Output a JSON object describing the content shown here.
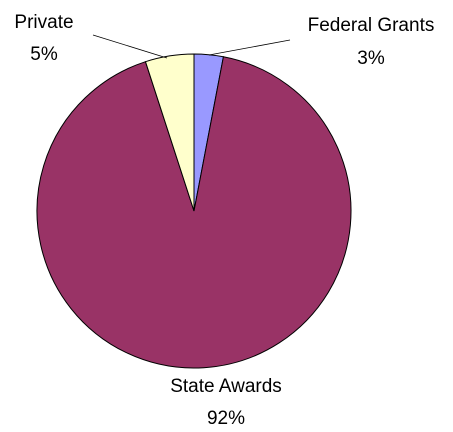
{
  "chart_data": {
    "type": "pie",
    "slices": [
      {
        "label": "Federal Grants",
        "value": 3,
        "value_text": "3%",
        "color": "#9999ff"
      },
      {
        "label": "State Awards",
        "value": 92,
        "value_text": "92%",
        "color": "#993366"
      },
      {
        "label": "Private",
        "value": 5,
        "value_text": "5%",
        "color": "#ffffcc"
      }
    ],
    "start": "12 o'clock",
    "direction": "clockwise",
    "legend": "none",
    "border_color": "#000000"
  }
}
